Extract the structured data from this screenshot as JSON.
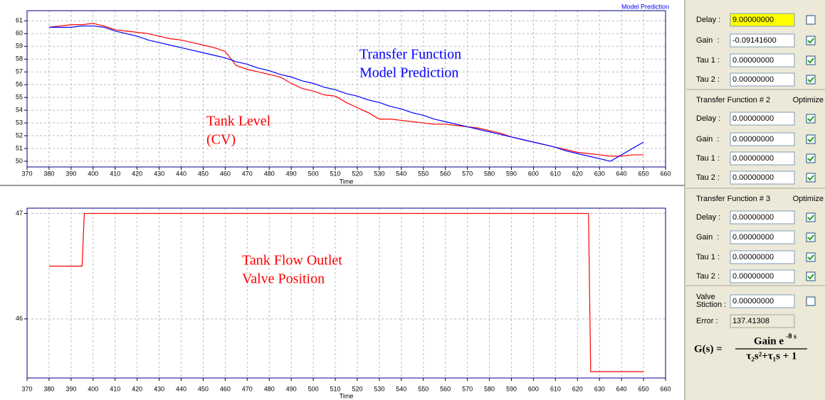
{
  "chart_data": [
    {
      "type": "line",
      "title": "Model Prediction",
      "xlabel": "Time",
      "x": [
        380,
        385,
        390,
        395,
        400,
        405,
        410,
        415,
        420,
        425,
        430,
        435,
        440,
        445,
        450,
        455,
        460,
        465,
        470,
        475,
        480,
        485,
        490,
        495,
        500,
        505,
        510,
        515,
        520,
        525,
        530,
        535,
        540,
        545,
        550,
        555,
        560,
        565,
        570,
        575,
        580,
        585,
        590,
        595,
        600,
        605,
        610,
        615,
        620,
        625,
        630,
        635,
        640,
        645,
        650
      ],
      "series": [
        {
          "color": "#ff0000",
          "values": [
            60.5,
            60.6,
            60.7,
            60.7,
            60.8,
            60.6,
            60.3,
            60.2,
            60.1,
            60.0,
            59.8,
            59.6,
            59.5,
            59.3,
            59.1,
            58.9,
            58.6,
            57.5,
            57.2,
            57.0,
            56.8,
            56.6,
            56.1,
            55.7,
            55.5,
            55.2,
            55.1,
            54.6,
            54.2,
            53.8,
            53.3,
            53.3,
            53.2,
            53.1,
            53.0,
            52.9,
            52.9,
            52.8,
            52.7,
            52.6,
            52.4,
            52.2,
            51.9,
            51.7,
            51.5,
            51.3,
            51.1,
            50.9,
            50.7,
            50.6,
            50.5,
            50.4,
            50.4,
            50.5,
            50.5
          ]
        },
        {
          "color": "#0000ff",
          "values": [
            60.5,
            60.5,
            60.5,
            60.6,
            60.6,
            60.5,
            60.2,
            60.0,
            59.8,
            59.5,
            59.3,
            59.1,
            58.9,
            58.7,
            58.5,
            58.3,
            58.1,
            57.8,
            57.6,
            57.3,
            57.1,
            56.8,
            56.6,
            56.3,
            56.1,
            55.8,
            55.6,
            55.3,
            55.1,
            54.8,
            54.6,
            54.3,
            54.1,
            53.8,
            53.6,
            53.3,
            53.1,
            52.9,
            52.7,
            52.5,
            52.3,
            52.1,
            51.9,
            51.7,
            51.5,
            51.3,
            51.1,
            50.8,
            50.6,
            50.4,
            50.2,
            50.0,
            50.5,
            51.0,
            51.5
          ]
        }
      ],
      "xlim": [
        370,
        660
      ],
      "xticks": [
        370,
        380,
        390,
        400,
        410,
        420,
        430,
        440,
        450,
        460,
        470,
        480,
        490,
        500,
        510,
        520,
        530,
        540,
        550,
        560,
        570,
        580,
        590,
        600,
        610,
        620,
        630,
        640,
        650,
        660
      ],
      "ylim": [
        49.55,
        61.8
      ],
      "yticks": [
        50,
        51,
        52,
        53,
        54,
        55,
        56,
        57,
        58,
        59,
        60,
        61
      ],
      "grid": true,
      "annotations": [
        {
          "lines": [
            "Transfer Function",
            "Model Prediction"
          ],
          "color": "#0000ff"
        },
        {
          "lines": [
            "Tank Level",
            "(CV)"
          ],
          "color": "#ff0000"
        }
      ]
    },
    {
      "type": "line",
      "xlabel": "Time",
      "x": [
        380,
        395,
        396,
        625,
        626,
        650
      ],
      "series": [
        {
          "color": "#ff0000",
          "values": [
            46.5,
            46.5,
            47,
            47,
            45.5,
            45.5
          ]
        }
      ],
      "xlim": [
        370,
        660
      ],
      "xticks": [
        370,
        380,
        390,
        400,
        410,
        420,
        430,
        440,
        450,
        460,
        470,
        480,
        490,
        500,
        510,
        520,
        530,
        540,
        550,
        560,
        570,
        580,
        590,
        600,
        610,
        620,
        630,
        640,
        650,
        660
      ],
      "ylim": [
        45.44,
        47.05
      ],
      "yticks": [
        46,
        47
      ],
      "grid": true,
      "annotations": [
        {
          "lines": [
            "Tank Flow Outlet",
            "Valve Position"
          ],
          "color": "#ff0000"
        }
      ]
    }
  ],
  "panel": {
    "sections": [
      {
        "rows": [
          {
            "label": "Delay :",
            "value": "9.00000000",
            "checked": false,
            "highlighted": true
          },
          {
            "label": "Gain  :",
            "value": "-0.09141600",
            "checked": true
          },
          {
            "label": "Tau 1 :",
            "value": "0.00000000",
            "checked": true
          },
          {
            "label": "Tau 2 :",
            "value": "0.00000000",
            "checked": true
          }
        ]
      },
      {
        "heading": "Transfer Function # 2",
        "option": "Optimize",
        "rows": [
          {
            "label": "Delay :",
            "value": "0.00000000",
            "checked": true
          },
          {
            "label": "Gain  :",
            "value": "0.00000000",
            "checked": true
          },
          {
            "label": "Tau 1 :",
            "value": "0.00000000",
            "checked": true
          },
          {
            "label": "Tau 2 :",
            "value": "0.00000000",
            "checked": true
          }
        ]
      },
      {
        "heading": "Transfer Function # 3",
        "option": "Optimize",
        "rows": [
          {
            "label": "Delay :",
            "value": "0.00000000",
            "checked": true
          },
          {
            "label": "Gain  :",
            "value": "0.00000000",
            "checked": true
          },
          {
            "label": "Tau 1 :",
            "value": "0.00000000",
            "checked": true
          },
          {
            "label": "Tau 2 :",
            "value": "0.00000000",
            "checked": true
          }
        ]
      }
    ],
    "stiction": {
      "label": [
        "Valve",
        "Stiction :"
      ],
      "value": "0.00000000",
      "checked": false
    },
    "error": {
      "label": "Error :",
      "value": "137.41308"
    },
    "formula": {
      "lhs": "G(s) =",
      "numerator": "Gain e",
      "exponent": "-θ s",
      "denominator": "τ₂s²+τ₁s + 1"
    }
  }
}
